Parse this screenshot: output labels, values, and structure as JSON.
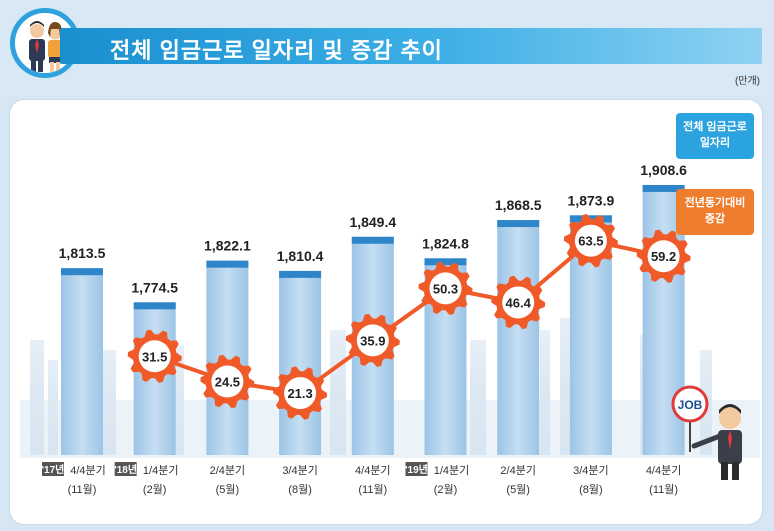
{
  "header": {
    "title": "전체 임금근로 일자리 및 증감 추이",
    "unit": "(만개)"
  },
  "legend": {
    "total_line1": "전체 임금근로",
    "total_line2": "일자리",
    "change_line1": "전년동기대비",
    "change_line2": "증감"
  },
  "badge_text": "JOB",
  "colors": {
    "bar": "#a9cdea",
    "bar_cap": "#2e86c8",
    "line": "#f05a28",
    "gear": "#f05a28",
    "title_bar": "#1a8fd0"
  },
  "chart_data": {
    "type": "bar",
    "title": "전체 임금근로 일자리 및 증감 추이",
    "unit": "(만개)",
    "categories": [
      {
        "year": "'17년",
        "quarter": "4/4분기",
        "month": "(11월)"
      },
      {
        "year": "'18년",
        "quarter": "1/4분기",
        "month": "(2월)"
      },
      {
        "year": "",
        "quarter": "2/4분기",
        "month": "(5월)"
      },
      {
        "year": "",
        "quarter": "3/4분기",
        "month": "(8월)"
      },
      {
        "year": "",
        "quarter": "4/4분기",
        "month": "(11월)"
      },
      {
        "year": "'19년",
        "quarter": "1/4분기",
        "month": "(2월)"
      },
      {
        "year": "",
        "quarter": "2/4분기",
        "month": "(5월)"
      },
      {
        "year": "",
        "quarter": "3/4분기",
        "month": "(8월)"
      },
      {
        "year": "",
        "quarter": "4/4분기",
        "month": "(11월)"
      }
    ],
    "series": [
      {
        "name": "전체 임금근로 일자리",
        "kind": "bar",
        "values": [
          1813.5,
          1774.5,
          1822.1,
          1810.4,
          1849.4,
          1824.8,
          1868.5,
          1873.9,
          1908.6
        ],
        "labels": [
          "1,813.5",
          "1,774.5",
          "1,822.1",
          "1,810.4",
          "1,849.4",
          "1,824.8",
          "1,868.5",
          "1,873.9",
          "1,908.6"
        ]
      },
      {
        "name": "전년동기대비 증감",
        "kind": "line",
        "values": [
          null,
          31.5,
          24.5,
          21.3,
          35.9,
          50.3,
          46.4,
          63.5,
          59.2
        ],
        "labels": [
          "",
          "31.5",
          "24.5",
          "21.3",
          "35.9",
          "50.3",
          "46.4",
          "63.5",
          "59.2"
        ]
      }
    ],
    "bar_axis_range": [
      1600,
      1920
    ],
    "line_axis_range": [
      0,
      90
    ]
  }
}
